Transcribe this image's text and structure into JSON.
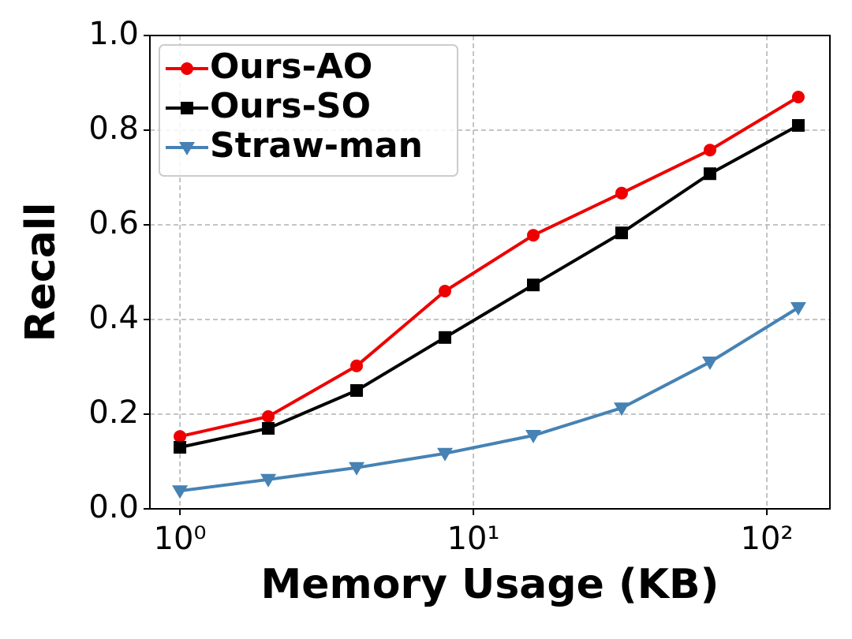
{
  "chart_data": {
    "type": "line",
    "xlabel": "Memory Usage (KB)",
    "ylabel": "Recall",
    "x": [
      1,
      2,
      4,
      8,
      16,
      32,
      64,
      128
    ],
    "series": [
      {
        "name": "Ours-AO",
        "color": "#ee0000",
        "marker": "circle",
        "values": [
          0.153,
          0.195,
          0.302,
          0.46,
          0.578,
          0.667,
          0.758,
          0.87
        ]
      },
      {
        "name": "Ours-SO",
        "color": "#000000",
        "marker": "square",
        "values": [
          0.13,
          0.17,
          0.25,
          0.362,
          0.473,
          0.583,
          0.708,
          0.81
        ]
      },
      {
        "name": "Straw-man",
        "color": "#4682b4",
        "marker": "triangle-down",
        "values": [
          0.038,
          0.062,
          0.087,
          0.117,
          0.155,
          0.213,
          0.31,
          0.425
        ]
      }
    ],
    "x_scale": "log",
    "xlim": [
      0.79,
      164
    ],
    "xticks": [
      {
        "value": 1,
        "label": "10⁰"
      },
      {
        "value": 10,
        "label": "10¹"
      },
      {
        "value": 100,
        "label": "10²"
      }
    ],
    "ylim": [
      0,
      1
    ],
    "yticks": [
      {
        "value": 0,
        "label": "0.0"
      },
      0.2,
      0.4,
      0.6,
      0.8,
      {
        "value": 1,
        "label": "1.0"
      }
    ],
    "grid": true,
    "legend": "upper left"
  }
}
